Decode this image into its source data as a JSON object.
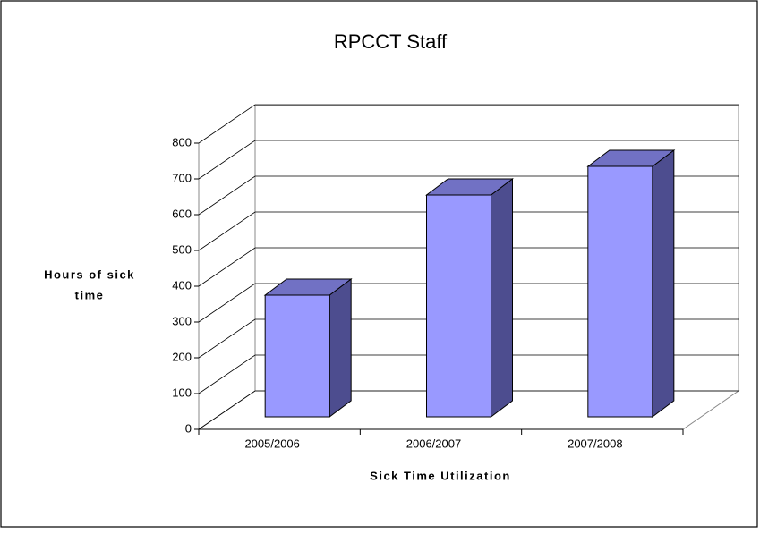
{
  "chart_data": {
    "type": "bar3d",
    "title": "RPCCT Staff",
    "x_label": "Sick Time Utilization",
    "y_label": [
      "Hours of sick",
      "time"
    ],
    "categories": [
      "2005/2006",
      "2006/2007",
      "2007/2008"
    ],
    "values": [
      340,
      620,
      700
    ],
    "color": "#9999ff",
    "ylim": [
      0,
      800
    ],
    "yticks": [
      0,
      100,
      200,
      300,
      400,
      500,
      600,
      700,
      800
    ],
    "grid": true
  }
}
